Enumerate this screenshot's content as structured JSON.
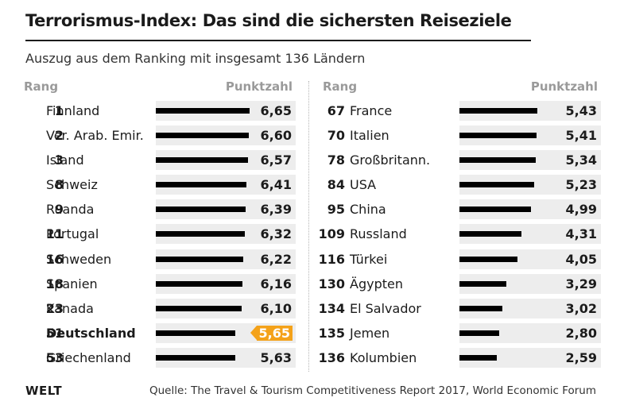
{
  "chart_data": {
    "type": "bar",
    "title": "Terrorismus-Index: Das sind die sichersten Reiseziele",
    "subtitle": "Auszug aus dem Ranking mit insgesamt 136 Ländern",
    "column_headers": {
      "rank": "Rang",
      "score": "Punktzahl"
    },
    "xlim": [
      0,
      7
    ],
    "highlight_color": "#f4a21a",
    "bar_color": "#000000",
    "track_color": "#ededed",
    "left": [
      {
        "rank": "1",
        "country": "Finnland",
        "value": 6.65,
        "label": "6,65"
      },
      {
        "rank": "2",
        "country": "Ver. Arab. Emir.",
        "value": 6.6,
        "label": "6,60"
      },
      {
        "rank": "3",
        "country": "Island",
        "value": 6.57,
        "label": "6,57"
      },
      {
        "rank": "8",
        "country": "Schweiz",
        "value": 6.41,
        "label": "6,41"
      },
      {
        "rank": "9",
        "country": "Ruanda",
        "value": 6.39,
        "label": "6,39"
      },
      {
        "rank": "11",
        "country": "Portugal",
        "value": 6.32,
        "label": "6,32"
      },
      {
        "rank": "16",
        "country": "Schweden",
        "value": 6.22,
        "label": "6,22"
      },
      {
        "rank": "18",
        "country": "Spanien",
        "value": 6.16,
        "label": "6,16"
      },
      {
        "rank": "23",
        "country": "Kanada",
        "value": 6.1,
        "label": "6,10"
      },
      {
        "rank": "51",
        "country": "Deutschland",
        "value": 5.65,
        "label": "5,65",
        "highlight": true
      },
      {
        "rank": "53",
        "country": "Griechenland",
        "value": 5.63,
        "label": "5,63"
      }
    ],
    "right": [
      {
        "rank": "67",
        "country": "France",
        "value": 5.43,
        "label": "5,43"
      },
      {
        "rank": "70",
        "country": "Italien",
        "value": 5.41,
        "label": "5,41"
      },
      {
        "rank": "78",
        "country": "Großbritann.",
        "value": 5.34,
        "label": "5,34"
      },
      {
        "rank": "84",
        "country": "USA",
        "value": 5.23,
        "label": "5,23"
      },
      {
        "rank": "95",
        "country": "China",
        "value": 4.99,
        "label": "4,99"
      },
      {
        "rank": "109",
        "country": "Russland",
        "value": 4.31,
        "label": "4,31"
      },
      {
        "rank": "116",
        "country": "Türkei",
        "value": 4.05,
        "label": "4,05"
      },
      {
        "rank": "130",
        "country": "Ägypten",
        "value": 3.29,
        "label": "3,29"
      },
      {
        "rank": "134",
        "country": "El Salvador",
        "value": 3.02,
        "label": "3,02"
      },
      {
        "rank": "135",
        "country": "Jemen",
        "value": 2.8,
        "label": "2,80"
      },
      {
        "rank": "136",
        "country": "Kolumbien",
        "value": 2.59,
        "label": "2,59"
      }
    ]
  },
  "footer": {
    "logo": "WELT",
    "source": "Quelle: The Travel & Tourism Competitiveness Report 2017, World Economic Forum"
  }
}
